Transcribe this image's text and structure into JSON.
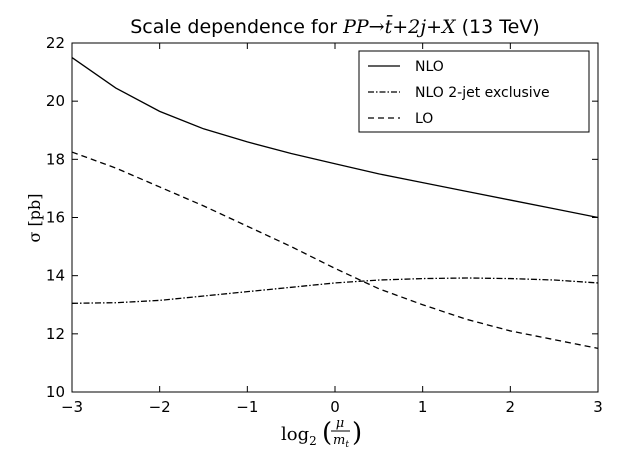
{
  "chart_data": {
    "type": "line",
    "title": {
      "prefix": "Scale dependence for ",
      "process": "PP→t̄+2j+X",
      "suffix": " (13 TeV)"
    },
    "xlabel": "log2(μ/mt)",
    "xlabel_parts": {
      "fn": "log",
      "sub": "2",
      "num": "μ",
      "den_base": "m",
      "den_sub": "t"
    },
    "ylabel": "σ [pb]",
    "xlim": [
      -3,
      3
    ],
    "ylim": [
      10,
      22
    ],
    "xticks": [
      "−3",
      "−2",
      "−1",
      "0",
      "1",
      "2",
      "3"
    ],
    "yticks": [
      "10",
      "12",
      "14",
      "16",
      "18",
      "20",
      "22"
    ],
    "legend_position": "top-right",
    "series": [
      {
        "name": "NLO",
        "style": "solid",
        "color": "#000000",
        "x": [
          -3,
          -2.5,
          -2,
          -1.5,
          -1,
          -0.5,
          0,
          0.5,
          1,
          1.5,
          2,
          2.5,
          3
        ],
        "y": [
          21.5,
          20.45,
          19.65,
          19.05,
          18.6,
          18.2,
          17.85,
          17.5,
          17.2,
          16.9,
          16.6,
          16.3,
          16.0
        ]
      },
      {
        "name": "NLO 2-jet exclusive",
        "style": "dashdot",
        "color": "#000000",
        "x": [
          -3,
          -2.5,
          -2,
          -1.5,
          -1,
          -0.5,
          0,
          0.5,
          1,
          1.5,
          2,
          2.5,
          3
        ],
        "y": [
          13.05,
          13.07,
          13.15,
          13.3,
          13.45,
          13.6,
          13.75,
          13.85,
          13.9,
          13.92,
          13.9,
          13.85,
          13.75
        ]
      },
      {
        "name": "LO",
        "style": "dashed",
        "color": "#000000",
        "x": [
          -3,
          -2.5,
          -2,
          -1.5,
          -1,
          -0.5,
          0,
          0.5,
          1,
          1.5,
          2,
          2.5,
          3
        ],
        "y": [
          18.25,
          17.7,
          17.05,
          16.4,
          15.7,
          15.0,
          14.25,
          13.55,
          13.0,
          12.5,
          12.1,
          11.8,
          11.5
        ]
      }
    ]
  }
}
